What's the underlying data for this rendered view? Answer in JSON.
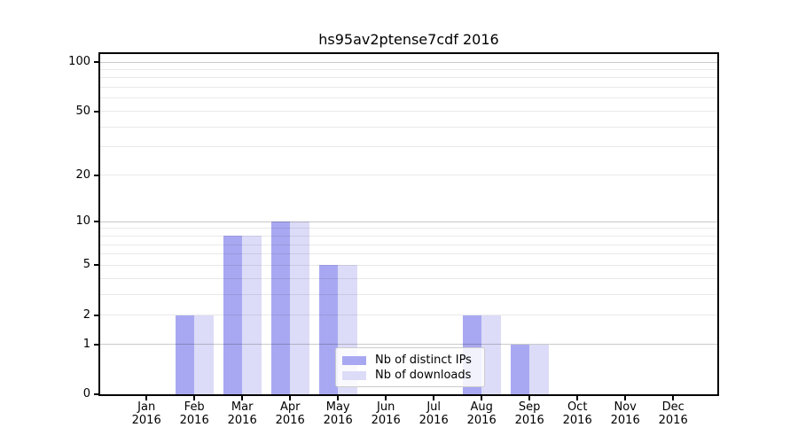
{
  "title": "hs95av2ptense7cdf 2016",
  "legend": {
    "items": [
      {
        "label": "Nb of distinct IPs",
        "color": "#a8a8f2"
      },
      {
        "label": "Nb of downloads",
        "color": "#dcdcf8"
      }
    ]
  },
  "colors": {
    "bar_dark": "#a8a8f2",
    "bar_light": "#dcdcf8",
    "axis": "#000000",
    "grid_decade": "#c9c9c9",
    "grid_light": "#ebebeb",
    "legend_border": "#cccccc",
    "background": "#ffffff"
  },
  "chart_data": {
    "type": "bar",
    "title": "hs95av2ptense7cdf 2016",
    "categories": [
      "Jan",
      "Feb",
      "Mar",
      "Apr",
      "May",
      "Jun",
      "Jul",
      "Aug",
      "Sep",
      "Oct",
      "Nov",
      "Dec"
    ],
    "x_year_label": "2016",
    "series": [
      {
        "name": "Nb of distinct IPs",
        "color": "#a8a8f2",
        "values": [
          0,
          2,
          8,
          10,
          5,
          0,
          0,
          2,
          1,
          0,
          0,
          0
        ]
      },
      {
        "name": "Nb of downloads",
        "color": "#dcdcf8",
        "values": [
          0,
          2,
          8,
          10,
          5,
          0,
          0,
          2,
          1,
          0,
          0,
          0
        ]
      }
    ],
    "yscale": "log10(1+v)",
    "ylim": [
      0,
      113
    ],
    "yticks": [
      0,
      1,
      2,
      5,
      10,
      20,
      50,
      100
    ],
    "grid": true,
    "grid_values_decade": [
      1,
      10,
      100
    ],
    "grid_values_light": [
      2,
      3,
      4,
      5,
      6,
      7,
      8,
      9,
      20,
      30,
      40,
      50,
      60,
      70,
      80,
      90
    ],
    "legend_position": "bottom-center-inside",
    "xlabel": "",
    "ylabel": ""
  }
}
